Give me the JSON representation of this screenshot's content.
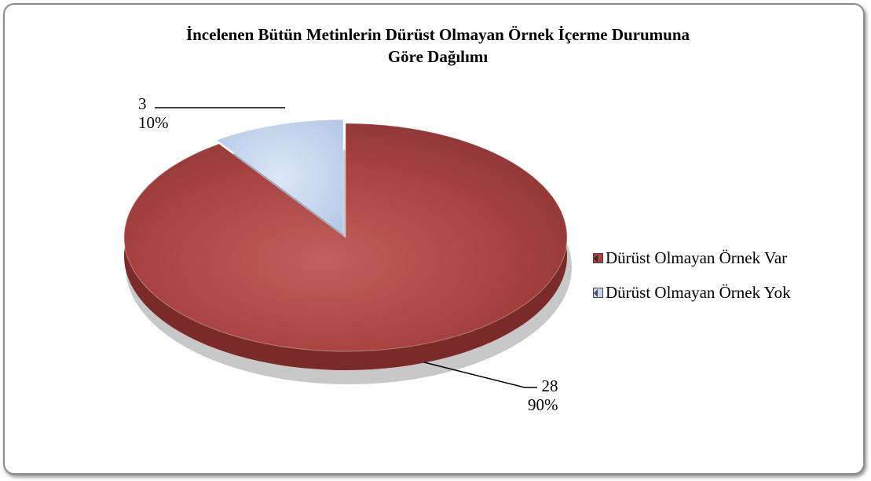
{
  "chart_data": {
    "type": "pie",
    "title_lines": [
      "İncelenen Bütün Metinlerin Dürüst Olmayan Örnek İçerme Durumuna",
      "Göre Dağılımı"
    ],
    "categories": [
      "Dürüst Olmayan Örnek Var",
      "Dürüst Olmayan Örnek Yok"
    ],
    "values": [
      28,
      3
    ],
    "percent_labels": [
      "90%",
      "10%"
    ],
    "colors": [
      "#a94442",
      "#c6d7ee"
    ],
    "legend_position": "right",
    "style": "3d-exploded"
  }
}
